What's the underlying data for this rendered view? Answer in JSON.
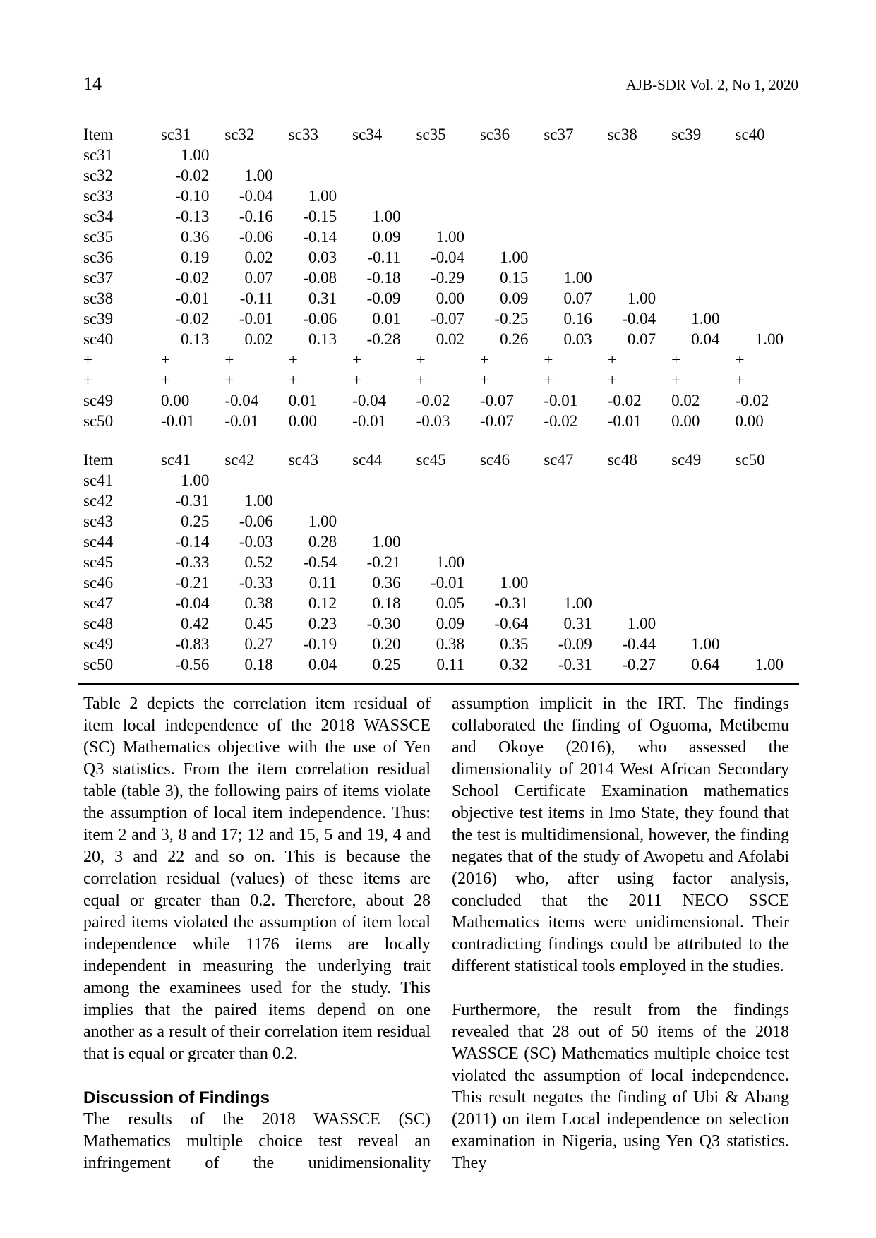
{
  "page": {
    "number": "14",
    "journal": "AJB-SDR Vol. 2, No 1, 2020"
  },
  "tables": [
    {
      "name": "correlation-matrix-sc31-sc40",
      "header": [
        "Item",
        "sc31",
        "sc32",
        "sc33",
        "sc34",
        "sc35",
        "sc36",
        "sc37",
        "sc38",
        "sc39",
        "sc40"
      ],
      "rows": [
        {
          "label": "sc31",
          "align": "right",
          "values": [
            "1.00"
          ]
        },
        {
          "label": "sc32",
          "align": "right",
          "values": [
            "-0.02",
            "1.00"
          ]
        },
        {
          "label": "sc33",
          "align": "right",
          "values": [
            "-0.10",
            "-0.04",
            "1.00"
          ]
        },
        {
          "label": "sc34",
          "align": "right",
          "values": [
            "-0.13",
            "-0.16",
            "-0.15",
            "1.00"
          ]
        },
        {
          "label": "sc35",
          "align": "right",
          "values": [
            "0.36",
            "-0.06",
            "-0.14",
            "0.09",
            "1.00"
          ]
        },
        {
          "label": "sc36",
          "align": "right",
          "values": [
            "0.19",
            "0.02",
            "0.03",
            "-0.11",
            "-0.04",
            "1.00"
          ]
        },
        {
          "label": "sc37",
          "align": "right",
          "values": [
            "-0.02",
            "0.07",
            "-0.08",
            "-0.18",
            "-0.29",
            "0.15",
            "1.00"
          ]
        },
        {
          "label": "sc38",
          "align": "right",
          "values": [
            "-0.01",
            "-0.11",
            "0.31",
            "-0.09",
            "0.00",
            "0.09",
            "0.07",
            "1.00"
          ]
        },
        {
          "label": "sc39",
          "align": "right",
          "values": [
            "-0.02",
            "-0.01",
            "-0.06",
            "0.01",
            "-0.07",
            "-0.25",
            "0.16",
            "-0.04",
            "1.00"
          ]
        },
        {
          "label": "sc40",
          "align": "right",
          "values": [
            "0.13",
            "0.02",
            "0.13",
            "-0.28",
            "0.02",
            "0.26",
            "0.03",
            "0.07",
            "0.04",
            "1.00"
          ]
        },
        {
          "label": "+",
          "align": "left",
          "values": [
            "+",
            "+",
            "+",
            "+",
            "+",
            "+",
            "+",
            "+",
            "+",
            "+"
          ]
        },
        {
          "label": "+",
          "align": "left",
          "values": [
            "+",
            "+",
            "+",
            "+",
            "+",
            "+",
            "+",
            "+",
            "+",
            "+"
          ]
        },
        {
          "label": "sc49",
          "align": "left",
          "values": [
            "0.00",
            "-0.04",
            "0.01",
            "-0.04",
            "-0.02",
            "-0.07",
            "-0.01",
            "-0.02",
            "0.02",
            "-0.02"
          ]
        },
        {
          "label": "sc50",
          "align": "left",
          "values": [
            "-0.01",
            "-0.01",
            "0.00",
            "-0.01",
            "-0.03",
            "-0.07",
            "-0.02",
            "-0.01",
            "0.00",
            "0.00"
          ]
        }
      ]
    },
    {
      "name": "correlation-matrix-sc41-sc50",
      "header": [
        "Item",
        "sc41",
        "sc42",
        "sc43",
        "sc44",
        "sc45",
        "sc46",
        "sc47",
        "sc48",
        "sc49",
        "sc50"
      ],
      "rows": [
        {
          "label": "sc41",
          "align": "right",
          "values": [
            "1.00"
          ]
        },
        {
          "label": "sc42",
          "align": "right",
          "values": [
            "-0.31",
            "1.00"
          ]
        },
        {
          "label": "sc43",
          "align": "right",
          "values": [
            "0.25",
            "-0.06",
            "1.00"
          ]
        },
        {
          "label": "sc44",
          "align": "right",
          "values": [
            "-0.14",
            "-0.03",
            "0.28",
            "1.00"
          ]
        },
        {
          "label": "sc45",
          "align": "right",
          "values": [
            "-0.33",
            "0.52",
            "-0.54",
            "-0.21",
            "1.00"
          ]
        },
        {
          "label": "sc46",
          "align": "right",
          "values": [
            "-0.21",
            "-0.33",
            "0.11",
            "0.36",
            "-0.01",
            "1.00"
          ]
        },
        {
          "label": "sc47",
          "align": "right",
          "values": [
            "-0.04",
            "0.38",
            "0.12",
            "0.18",
            "0.05",
            "-0.31",
            "1.00"
          ]
        },
        {
          "label": "sc48",
          "align": "right",
          "values": [
            "0.42",
            "0.45",
            "0.23",
            "-0.30",
            "0.09",
            "-0.64",
            "0.31",
            "1.00"
          ]
        },
        {
          "label": "sc49",
          "align": "right",
          "values": [
            "-0.83",
            "0.27",
            "-0.19",
            "0.20",
            "0.38",
            "0.35",
            "-0.09",
            "-0.44",
            "1.00"
          ]
        },
        {
          "label": "sc50",
          "align": "right",
          "values": [
            "-0.56",
            "0.18",
            "0.04",
            "0.25",
            "0.11",
            "0.32",
            "-0.31",
            "-0.27",
            "0.64",
            "1.00"
          ]
        }
      ]
    }
  ],
  "body": {
    "left": {
      "p1": "Table 2 depicts the correlation item residual of item local independence of the 2018 WASSCE (SC) Mathematics objective with the use of Yen Q3 statistics. From the item correlation residual table (table 3), the following pairs of items violate the assumption of local item independence. Thus: item 2 and 3, 8 and 17; 12 and 15, 5 and 19, 4 and 20, 3 and 22 and so on. This is because the correlation residual (values) of these items are equal or greater than 0.2. Therefore, about 28 paired items violated the assumption of item local independence while 1176 items are locally independent in measuring the underlying trait among the examinees used for the study. This implies that the paired items depend on one another as a result of their correlation item residual that is equal or greater than 0.2.",
      "heading": "Discussion of Findings",
      "p2": "The results of the 2018 WASSCE (SC) Mathematics multiple choice test reveal an infringement of the unidimensionality"
    },
    "right": {
      "p1": "assumption implicit in the IRT. The findings collaborated the finding of Oguoma, Metibemu and Okoye (2016), who assessed the dimensionality of 2014 West African Secondary School Certificate Examination mathematics objective test items in Imo State, they found that the test is multidimensional, however, the finding negates that of the study of Awopetu and Afolabi (2016) who, after using factor analysis, concluded that the 2011 NECO SSCE Mathematics items were unidimensional. Their contradicting findings could be attributed to the different statistical tools employed in the studies.",
      "p2": "Furthermore, the result from the findings revealed that 28 out of 50 items of the 2018 WASSCE (SC) Mathematics multiple choice test violated the assumption of local independence. This result negates the finding of Ubi & Abang (2011) on item Local independence on selection examination in Nigeria, using Yen Q3 statistics. They"
    }
  }
}
